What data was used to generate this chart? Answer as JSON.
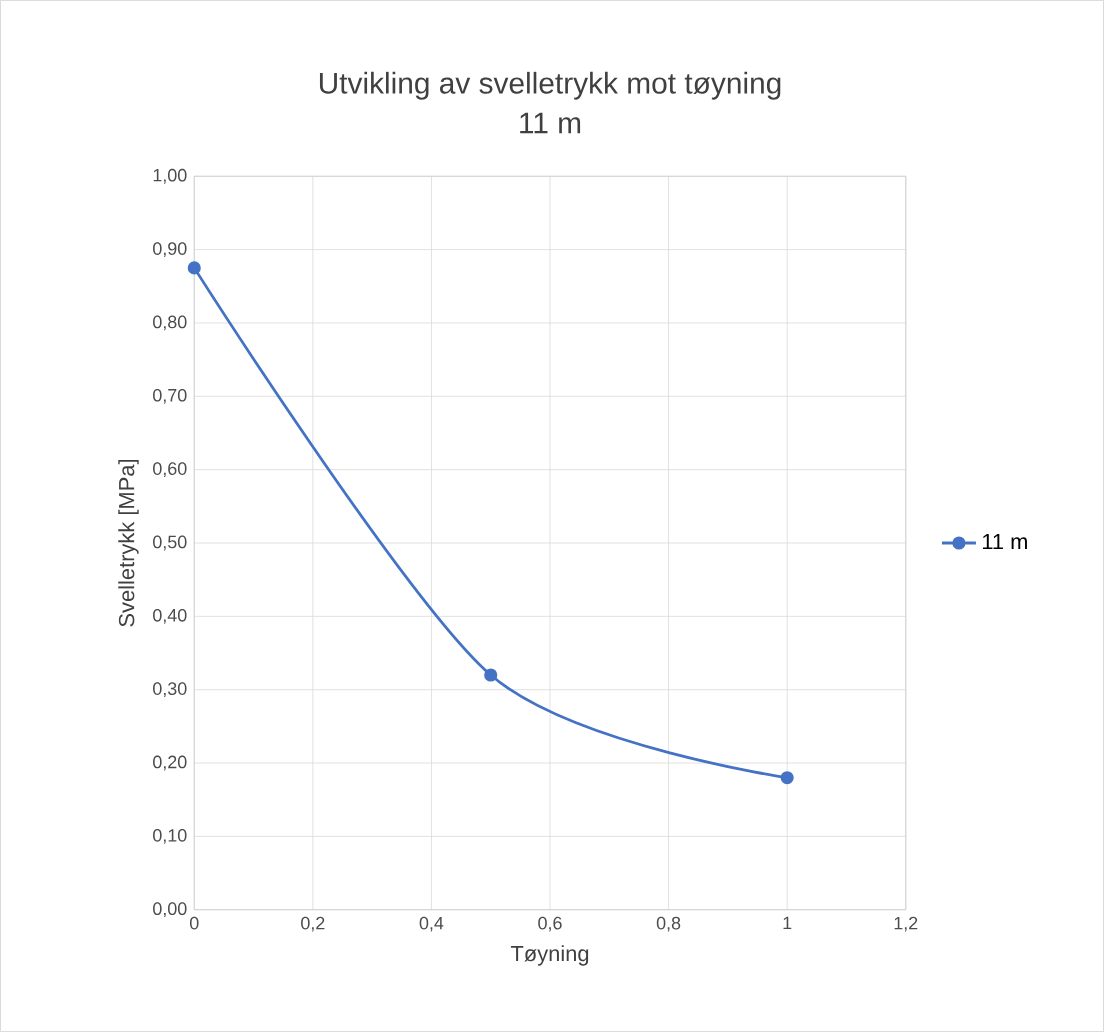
{
  "chart_data": {
    "type": "line",
    "title": "Utvikling av svelletrykk mot tøyning",
    "subtitle": "11 m",
    "xlabel": "Tøyning",
    "ylabel": "Svelletrykk [MPa]",
    "x": [
      0,
      0.5,
      1
    ],
    "series": [
      {
        "name": "11 m",
        "color": "#4472c4",
        "values": [
          0.875,
          0.32,
          0.18
        ]
      }
    ],
    "xlim": [
      0,
      1.2
    ],
    "ylim": [
      0,
      1.0
    ],
    "xticks": [
      0,
      {
        "value": 0.2,
        "label": "0,2"
      },
      {
        "value": 0.4,
        "label": "0,4"
      },
      {
        "value": 0.6,
        "label": "0,6"
      },
      {
        "value": 0.8,
        "label": "0,8"
      },
      1,
      {
        "value": 1.2,
        "label": "1,2"
      }
    ],
    "yticks": [
      {
        "value": 0,
        "label": "0,00"
      },
      {
        "value": 0.1,
        "label": "0,10"
      },
      {
        "value": 0.2,
        "label": "0,20"
      },
      {
        "value": 0.3,
        "label": "0,30"
      },
      {
        "value": 0.4,
        "label": "0,40"
      },
      {
        "value": 0.5,
        "label": "0,50"
      },
      {
        "value": 0.6,
        "label": "0,60"
      },
      {
        "value": 0.7,
        "label": "0,70"
      },
      {
        "value": 0.8,
        "label": "0,80"
      },
      {
        "value": 0.9,
        "label": "0,90"
      },
      {
        "value": 1.0,
        "label": "1,00"
      }
    ],
    "grid": true,
    "legend": "right",
    "marker": "circle",
    "line_style": "solid"
  }
}
